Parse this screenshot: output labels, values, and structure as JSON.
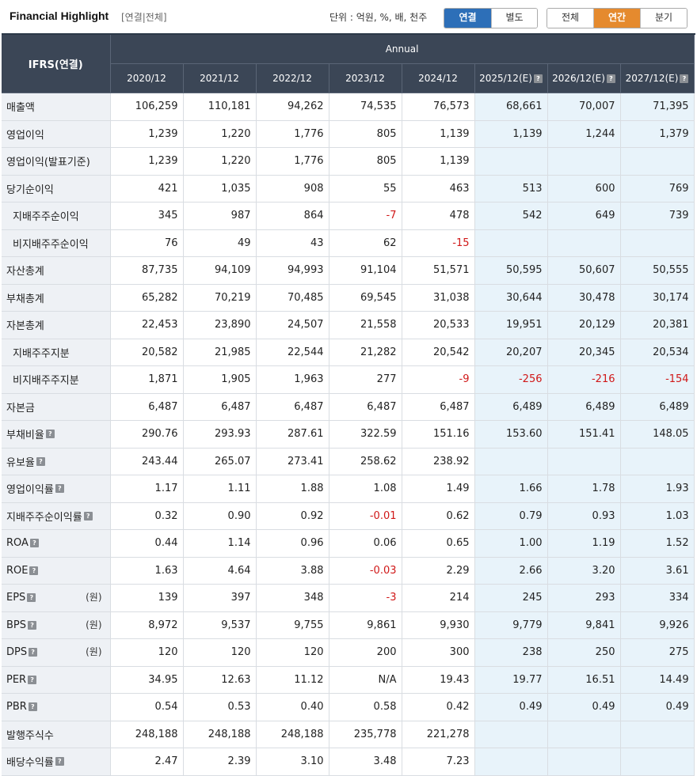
{
  "header": {
    "title": "Financial Highlight",
    "subtitle": "[연결|전체]",
    "unit": "단위 : 억원, %, 배, 천주",
    "scope_buttons": [
      "연결",
      "별도"
    ],
    "period_buttons": [
      "전체",
      "연간",
      "분기"
    ],
    "active_scope": "연결",
    "active_period": "연간"
  },
  "table": {
    "corner": "IFRS(연결)",
    "group": "Annual",
    "years": [
      "2020/12",
      "2021/12",
      "2022/12",
      "2023/12",
      "2024/12",
      "2025/12(E)",
      "2026/12(E)",
      "2027/12(E)"
    ],
    "rows": [
      {
        "label": "매출액",
        "values": [
          "106,259",
          "110,181",
          "94,262",
          "74,535",
          "76,573",
          "68,661",
          "70,007",
          "71,395"
        ]
      },
      {
        "label": "영업이익",
        "values": [
          "1,239",
          "1,220",
          "1,776",
          "805",
          "1,139",
          "1,139",
          "1,244",
          "1,379"
        ]
      },
      {
        "label": "영업이익(발표기준)",
        "values": [
          "1,239",
          "1,220",
          "1,776",
          "805",
          "1,139",
          "",
          "",
          ""
        ]
      },
      {
        "label": "당기순이익",
        "values": [
          "421",
          "1,035",
          "908",
          "55",
          "463",
          "513",
          "600",
          "769"
        ]
      },
      {
        "label": "지배주주순이익",
        "sub": true,
        "values": [
          "345",
          "987",
          "864",
          "-7",
          "478",
          "542",
          "649",
          "739"
        ]
      },
      {
        "label": "비지배주주순이익",
        "sub": true,
        "values": [
          "76",
          "49",
          "43",
          "62",
          "-15",
          "",
          "",
          ""
        ]
      },
      {
        "label": "자산총계",
        "values": [
          "87,735",
          "94,109",
          "94,993",
          "91,104",
          "51,571",
          "50,595",
          "50,607",
          "50,555"
        ]
      },
      {
        "label": "부채총계",
        "values": [
          "65,282",
          "70,219",
          "70,485",
          "69,545",
          "31,038",
          "30,644",
          "30,478",
          "30,174"
        ]
      },
      {
        "label": "자본총계",
        "values": [
          "22,453",
          "23,890",
          "24,507",
          "21,558",
          "20,533",
          "19,951",
          "20,129",
          "20,381"
        ]
      },
      {
        "label": "지배주주지분",
        "sub": true,
        "values": [
          "20,582",
          "21,985",
          "22,544",
          "21,282",
          "20,542",
          "20,207",
          "20,345",
          "20,534"
        ]
      },
      {
        "label": "비지배주주지분",
        "sub": true,
        "values": [
          "1,871",
          "1,905",
          "1,963",
          "277",
          "-9",
          "-256",
          "-216",
          "-154"
        ]
      },
      {
        "label": "자본금",
        "values": [
          "6,487",
          "6,487",
          "6,487",
          "6,487",
          "6,487",
          "6,489",
          "6,489",
          "6,489"
        ]
      },
      {
        "label": "부채비율",
        "help": true,
        "values": [
          "290.76",
          "293.93",
          "287.61",
          "322.59",
          "151.16",
          "153.60",
          "151.41",
          "148.05"
        ]
      },
      {
        "label": "유보율",
        "help": true,
        "values": [
          "243.44",
          "265.07",
          "273.41",
          "258.62",
          "238.92",
          "",
          "",
          ""
        ]
      },
      {
        "label": "영업이익률",
        "help": true,
        "values": [
          "1.17",
          "1.11",
          "1.88",
          "1.08",
          "1.49",
          "1.66",
          "1.78",
          "1.93"
        ]
      },
      {
        "label": "지배주주순이익률",
        "help": true,
        "values": [
          "0.32",
          "0.90",
          "0.92",
          "-0.01",
          "0.62",
          "0.79",
          "0.93",
          "1.03"
        ]
      },
      {
        "label": "ROA",
        "help": true,
        "values": [
          "0.44",
          "1.14",
          "0.96",
          "0.06",
          "0.65",
          "1.00",
          "1.19",
          "1.52"
        ]
      },
      {
        "label": "ROE",
        "help": true,
        "values": [
          "1.63",
          "4.64",
          "3.88",
          "-0.03",
          "2.29",
          "2.66",
          "3.20",
          "3.61"
        ]
      },
      {
        "label": "EPS",
        "help": true,
        "unit": "(원)",
        "values": [
          "139",
          "397",
          "348",
          "-3",
          "214",
          "245",
          "293",
          "334"
        ]
      },
      {
        "label": "BPS",
        "help": true,
        "unit": "(원)",
        "values": [
          "8,972",
          "9,537",
          "9,755",
          "9,861",
          "9,930",
          "9,779",
          "9,841",
          "9,926"
        ]
      },
      {
        "label": "DPS",
        "help": true,
        "unit": "(원)",
        "values": [
          "120",
          "120",
          "120",
          "200",
          "300",
          "238",
          "250",
          "275"
        ]
      },
      {
        "label": "PER",
        "help": true,
        "values": [
          "34.95",
          "12.63",
          "11.12",
          "N/A",
          "19.43",
          "19.77",
          "16.51",
          "14.49"
        ]
      },
      {
        "label": "PBR",
        "help": true,
        "values": [
          "0.54",
          "0.53",
          "0.40",
          "0.58",
          "0.42",
          "0.49",
          "0.49",
          "0.49"
        ]
      },
      {
        "label": "발행주식수",
        "values": [
          "248,188",
          "248,188",
          "248,188",
          "235,778",
          "221,278",
          "",
          "",
          ""
        ]
      },
      {
        "label": "배당수익률",
        "help": true,
        "values": [
          "2.47",
          "2.39",
          "3.10",
          "3.48",
          "7.23",
          "",
          "",
          ""
        ]
      }
    ]
  },
  "colors": {
    "header_bg": "#3b4656",
    "estimate_bg": "#e8f3fa",
    "negative": "#d01818",
    "scope_active": "#2d6fb8",
    "period_active": "#e58a2e"
  }
}
